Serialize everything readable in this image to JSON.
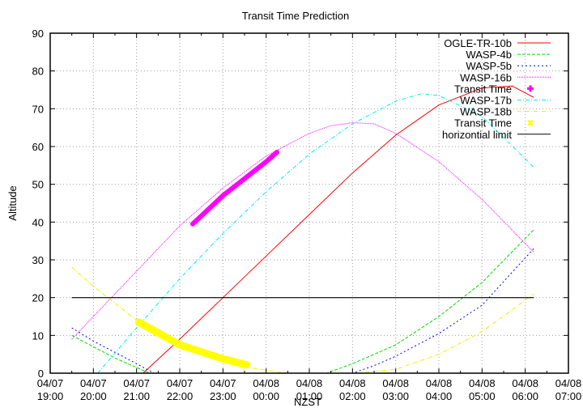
{
  "chart_data": {
    "type": "line",
    "title": "Transit Time Prediction",
    "xlabel": "NZST",
    "ylabel": "Altitude",
    "ylim": [
      0,
      90
    ],
    "yticks": [
      0,
      10,
      20,
      30,
      40,
      50,
      60,
      70,
      80,
      90
    ],
    "xlim_hours": [
      19,
      31
    ],
    "xticks": [
      {
        "date": "04/07",
        "time": "19:00"
      },
      {
        "date": "04/07",
        "time": "20:00"
      },
      {
        "date": "04/07",
        "time": "21:00"
      },
      {
        "date": "04/07",
        "time": "22:00"
      },
      {
        "date": "04/07",
        "time": "23:00"
      },
      {
        "date": "04/08",
        "time": "00:00"
      },
      {
        "date": "04/08",
        "time": "01:00"
      },
      {
        "date": "04/08",
        "time": "02:00"
      },
      {
        "date": "04/08",
        "time": "03:00"
      },
      {
        "date": "04/08",
        "time": "04:00"
      },
      {
        "date": "04/08",
        "time": "05:00"
      },
      {
        "date": "04/08",
        "time": "06:00"
      },
      {
        "date": "04/08",
        "time": "07:00"
      }
    ],
    "grid": true,
    "legend_position": "top-right",
    "series": [
      {
        "name": "OGLE-TR-10b",
        "color": "#ff0000",
        "dash": "",
        "x": [
          21.15,
          22.0,
          23.0,
          24.0,
          25.0,
          26.0,
          27.0,
          28.0,
          29.0,
          29.7,
          30.2
        ],
        "y": [
          0,
          9,
          20,
          31,
          42,
          53,
          63,
          71,
          75.5,
          76,
          73
        ]
      },
      {
        "name": "WASP-4b",
        "color": "#00dd00",
        "dash": "4,2",
        "x": [
          19.5,
          20.0,
          20.5,
          21.0,
          21.3,
          25.4,
          26.0,
          27.0,
          28.0,
          29.0,
          30.2
        ],
        "y": [
          10,
          7,
          4,
          1.5,
          0,
          0,
          2.5,
          7.5,
          15,
          24,
          38
        ]
      },
      {
        "name": "WASP-5b",
        "color": "#0000ff",
        "dash": "2,3",
        "x": [
          19.5,
          20.0,
          20.5,
          21.0,
          21.4,
          26.0,
          26.5,
          27.0,
          28.0,
          29.0,
          30.2
        ],
        "y": [
          12,
          8.5,
          5.5,
          2.5,
          0,
          0,
          2,
          4.5,
          10.5,
          18,
          33
        ]
      },
      {
        "name": "WASP-16b",
        "color": "#ff00ff",
        "dash": "1,1",
        "x": [
          19.5,
          20.0,
          21.0,
          22.0,
          23.0,
          24.0,
          25.0,
          25.5,
          26.0,
          26.5,
          27.0,
          28.0,
          29.0,
          30.2
        ],
        "y": [
          9,
          15,
          27,
          39,
          49,
          57.5,
          63.5,
          65.5,
          66.3,
          66,
          63.5,
          56,
          46,
          32
        ]
      },
      {
        "name": "WASP-17b",
        "color": "#00eeee",
        "dash": "5,2,1,2",
        "x": [
          20.1,
          21.0,
          22.0,
          23.0,
          24.0,
          25.0,
          26.0,
          27.0,
          27.6,
          28.0,
          29.0,
          30.2
        ],
        "y": [
          0,
          12,
          25,
          37,
          48,
          58,
          66,
          72,
          74,
          73.5,
          68,
          54.5
        ]
      },
      {
        "name": "WASP-18b",
        "color": "#eeee00",
        "dash": "5,2,1,2",
        "x": [
          19.5,
          20.0,
          21.0,
          22.0,
          23.0,
          23.6,
          24.0,
          24.5,
          25.0,
          26.0,
          27.0,
          28.0,
          29.0,
          30.2
        ],
        "y": [
          28,
          23,
          14,
          7,
          3,
          1.5,
          0.8,
          0,
          0,
          0,
          1,
          5,
          11,
          21
        ]
      },
      {
        "name": "horizontial limit",
        "color": "#000000",
        "dash": "",
        "width": 1.2,
        "x": [
          19.5,
          30.2
        ],
        "y": [
          20,
          20
        ]
      }
    ],
    "transit_segments": [
      {
        "name": "Transit Time",
        "of": "WASP-16b",
        "color": "#ff00ff",
        "marker": "plus",
        "x": [
          22.3,
          23.0,
          24.0,
          24.25
        ],
        "y": [
          39.5,
          47,
          56,
          58.5
        ]
      },
      {
        "name": "Transit Time",
        "of": "WASP-18b",
        "color": "#ffff00",
        "marker": "cross",
        "x": [
          21.05,
          22.0,
          23.0,
          23.55
        ],
        "y": [
          13.5,
          7.5,
          3.8,
          2.2
        ]
      }
    ],
    "legend": [
      {
        "label": "OGLE-TR-10b",
        "color": "#ff0000",
        "style": "line",
        "dash": ""
      },
      {
        "label": "WASP-4b",
        "color": "#00dd00",
        "style": "line",
        "dash": "4,2"
      },
      {
        "label": "WASP-5b",
        "color": "#0000ff",
        "style": "line",
        "dash": "2,3"
      },
      {
        "label": "WASP-16b",
        "color": "#ff00ff",
        "style": "line",
        "dash": "1,1"
      },
      {
        "label": "Transit Time",
        "color": "#ff00ff",
        "style": "plus"
      },
      {
        "label": "WASP-17b",
        "color": "#00eeee",
        "style": "line",
        "dash": "5,2,1,2"
      },
      {
        "label": "WASP-18b",
        "color": "#eeee00",
        "style": "line",
        "dash": "5,2,1,2"
      },
      {
        "label": "Transit Time",
        "color": "#ffff00",
        "style": "cross"
      },
      {
        "label": "horizontial limit",
        "color": "#000000",
        "style": "line",
        "dash": ""
      }
    ]
  }
}
